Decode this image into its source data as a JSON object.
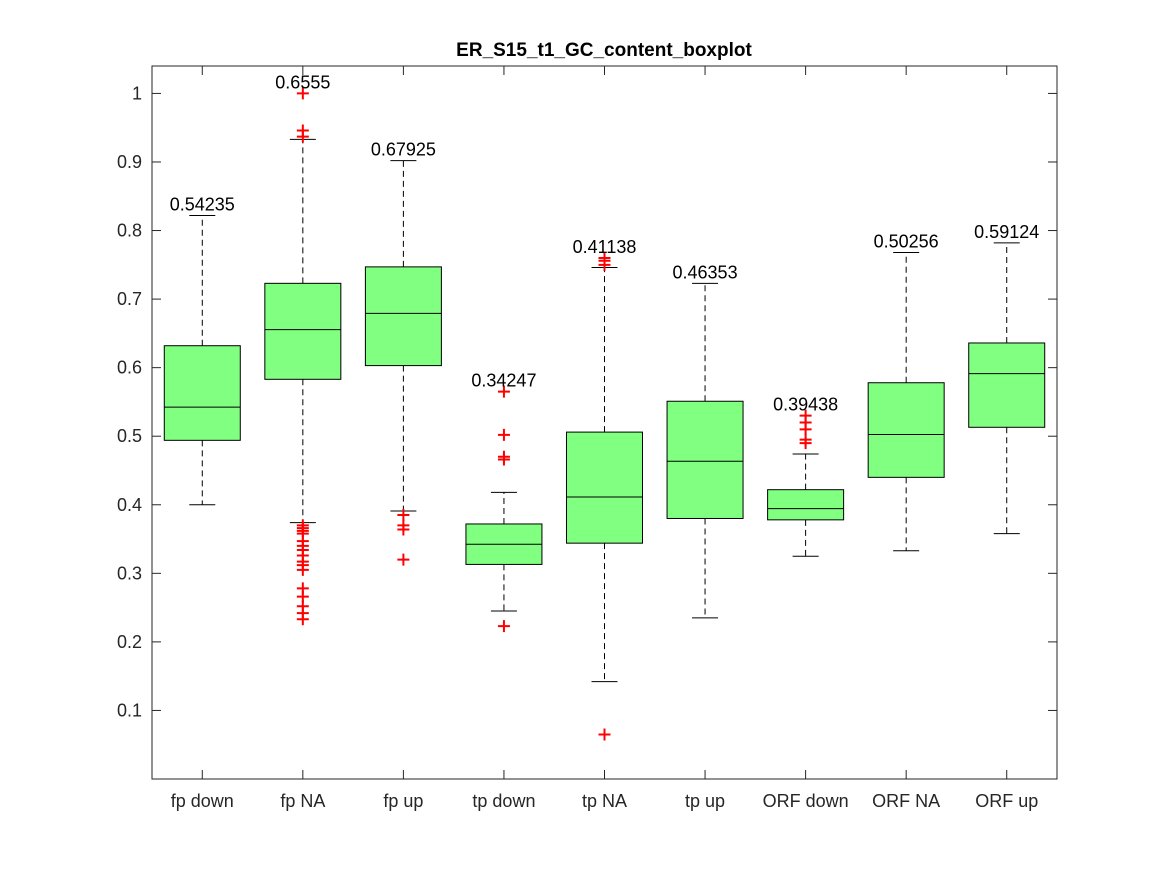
{
  "chart_data": {
    "type": "boxplot",
    "title": "ER_S15_t1_GC_content_boxplot",
    "xlabel": "",
    "ylabel": "",
    "ylim": [
      0,
      1.04
    ],
    "yticks": [
      0.1,
      0.2,
      0.3,
      0.4,
      0.5,
      0.6,
      0.7,
      0.8,
      0.9,
      1
    ],
    "ytick_labels": [
      "0.1",
      "0.2",
      "0.3",
      "0.4",
      "0.5",
      "0.6",
      "0.7",
      "0.8",
      "0.9",
      "1"
    ],
    "grid": false,
    "colors": {
      "box_fill": "#80ff80",
      "outlier": "#ff0000",
      "axis": "#262626",
      "whisker": "#000000"
    },
    "categories": [
      "fp down",
      "fp NA",
      "fp up",
      "tp down",
      "tp NA",
      "tp up",
      "ORF down",
      "ORF NA",
      "ORF up"
    ],
    "boxes": [
      {
        "name": "fp down",
        "median": 0.54235,
        "median_label": "0.54235",
        "q1": 0.494,
        "q3": 0.632,
        "whisker_low": 0.4,
        "whisker_high": 0.822,
        "outliers": []
      },
      {
        "name": "fp NA",
        "median": 0.6555,
        "median_label": "0.6555",
        "q1": 0.583,
        "q3": 0.723,
        "whisker_low": 0.374,
        "whisker_high": 0.933,
        "outliers": [
          1.0,
          0.946,
          0.937,
          0.37,
          0.366,
          0.362,
          0.358,
          0.347,
          0.34,
          0.334,
          0.326,
          0.317,
          0.312,
          0.305,
          0.278,
          0.266,
          0.252,
          0.242,
          0.233
        ]
      },
      {
        "name": "fp up",
        "median": 0.67925,
        "median_label": "0.67925",
        "q1": 0.603,
        "q3": 0.747,
        "whisker_low": 0.391,
        "whisker_high": 0.902,
        "outliers": [
          0.385,
          0.37,
          0.364,
          0.32
        ]
      },
      {
        "name": "tp down",
        "median": 0.34247,
        "median_label": "0.34247",
        "q1": 0.313,
        "q3": 0.372,
        "whisker_low": 0.245,
        "whisker_high": 0.418,
        "outliers": [
          0.565,
          0.502,
          0.47,
          0.466,
          0.223
        ]
      },
      {
        "name": "tp NA",
        "median": 0.41138,
        "median_label": "0.41138",
        "q1": 0.344,
        "q3": 0.506,
        "whisker_low": 0.142,
        "whisker_high": 0.746,
        "outliers": [
          0.76,
          0.756,
          0.75,
          0.065
        ]
      },
      {
        "name": "tp up",
        "median": 0.46353,
        "median_label": "0.46353",
        "q1": 0.38,
        "q3": 0.551,
        "whisker_low": 0.235,
        "whisker_high": 0.723,
        "outliers": []
      },
      {
        "name": "ORF down",
        "median": 0.39438,
        "median_label": "0.39438",
        "q1": 0.378,
        "q3": 0.422,
        "whisker_low": 0.325,
        "whisker_high": 0.474,
        "outliers": [
          0.53,
          0.52,
          0.51,
          0.495,
          0.49
        ]
      },
      {
        "name": "ORF NA",
        "median": 0.50256,
        "median_label": "0.50256",
        "q1": 0.44,
        "q3": 0.578,
        "whisker_low": 0.333,
        "whisker_high": 0.768,
        "outliers": []
      },
      {
        "name": "ORF up",
        "median": 0.59124,
        "median_label": "0.59124",
        "q1": 0.513,
        "q3": 0.636,
        "whisker_low": 0.358,
        "whisker_high": 0.782,
        "outliers": []
      }
    ]
  }
}
